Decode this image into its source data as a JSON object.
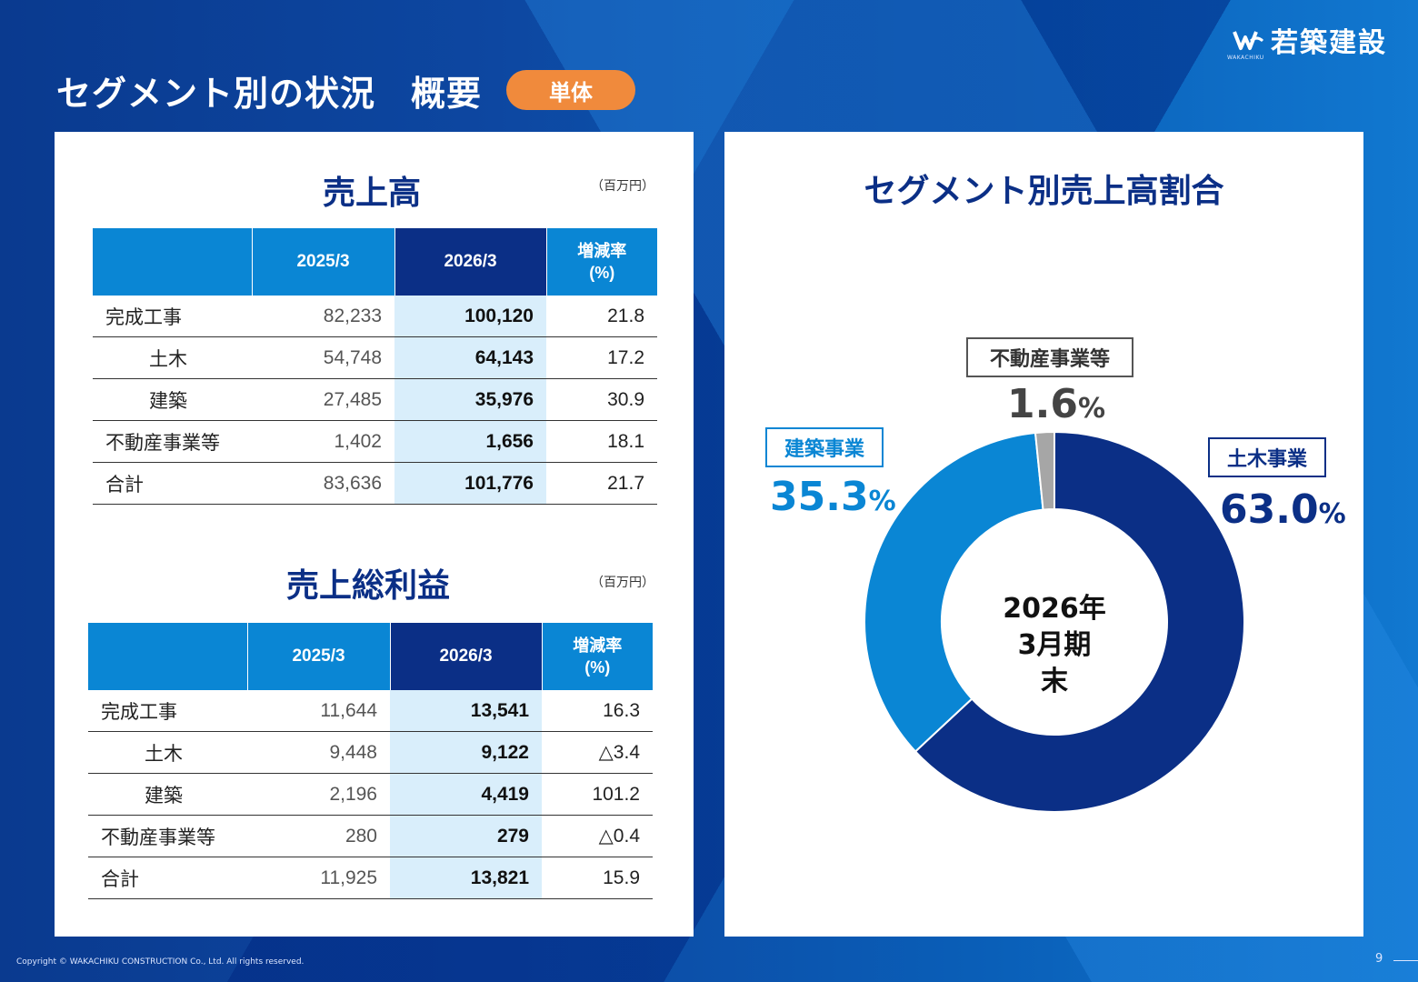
{
  "header": {
    "title": "セグメント別の状況　概要",
    "badge": "単体",
    "logo_text": "若築建設",
    "logo_sub": "WAKACHIKU"
  },
  "sales": {
    "title": "売上高",
    "unit": "（百万円）",
    "columns": [
      "",
      "2025/3",
      "2026/3",
      "増減率\n(%)"
    ],
    "rows": [
      {
        "label": "完成工事",
        "sub": false,
        "prev": "82,233",
        "cur": "100,120",
        "rate": "21.8"
      },
      {
        "label": "土木",
        "sub": true,
        "prev": "54,748",
        "cur": "64,143",
        "rate": "17.2"
      },
      {
        "label": "建築",
        "sub": true,
        "prev": "27,485",
        "cur": "35,976",
        "rate": "30.9"
      },
      {
        "label": "不動産事業等",
        "sub": false,
        "prev": "1,402",
        "cur": "1,656",
        "rate": "18.1"
      },
      {
        "label": "合計",
        "sub": false,
        "prev": "83,636",
        "cur": "101,776",
        "rate": "21.7"
      }
    ]
  },
  "gross_profit": {
    "title": "売上総利益",
    "unit": "（百万円）",
    "columns": [
      "",
      "2025/3",
      "2026/3",
      "増減率\n(%)"
    ],
    "rows": [
      {
        "label": "完成工事",
        "sub": false,
        "prev": "11,644",
        "cur": "13,541",
        "rate": "16.3"
      },
      {
        "label": "土木",
        "sub": true,
        "prev": "9,448",
        "cur": "9,122",
        "rate": "△3.4"
      },
      {
        "label": "建築",
        "sub": true,
        "prev": "2,196",
        "cur": "4,419",
        "rate": "101.2"
      },
      {
        "label": "不動産事業等",
        "sub": false,
        "prev": "280",
        "cur": "279",
        "rate": "△0.4"
      },
      {
        "label": "合計",
        "sub": false,
        "prev": "11,925",
        "cur": "13,821",
        "rate": "15.9"
      }
    ]
  },
  "chart_data": {
    "type": "pie",
    "title": "セグメント別売上高割合",
    "center_label": [
      "2026年",
      "3月期",
      "末"
    ],
    "slices": [
      {
        "label": "土木事業",
        "value": 63.0,
        "display": "63.0",
        "color": "#0b2f86"
      },
      {
        "label": "建築事業",
        "value": 35.3,
        "display": "35.3",
        "color": "#0a86d4"
      },
      {
        "label": "不動産事業等",
        "value": 1.6,
        "display": "1.6",
        "color": "#a6a6a6"
      }
    ],
    "percent_sign": "%"
  },
  "footer": {
    "copyright": "Copyright © WAKACHIKU CONSTRUCTION Co., Ltd. All rights reserved.",
    "page": "9"
  }
}
